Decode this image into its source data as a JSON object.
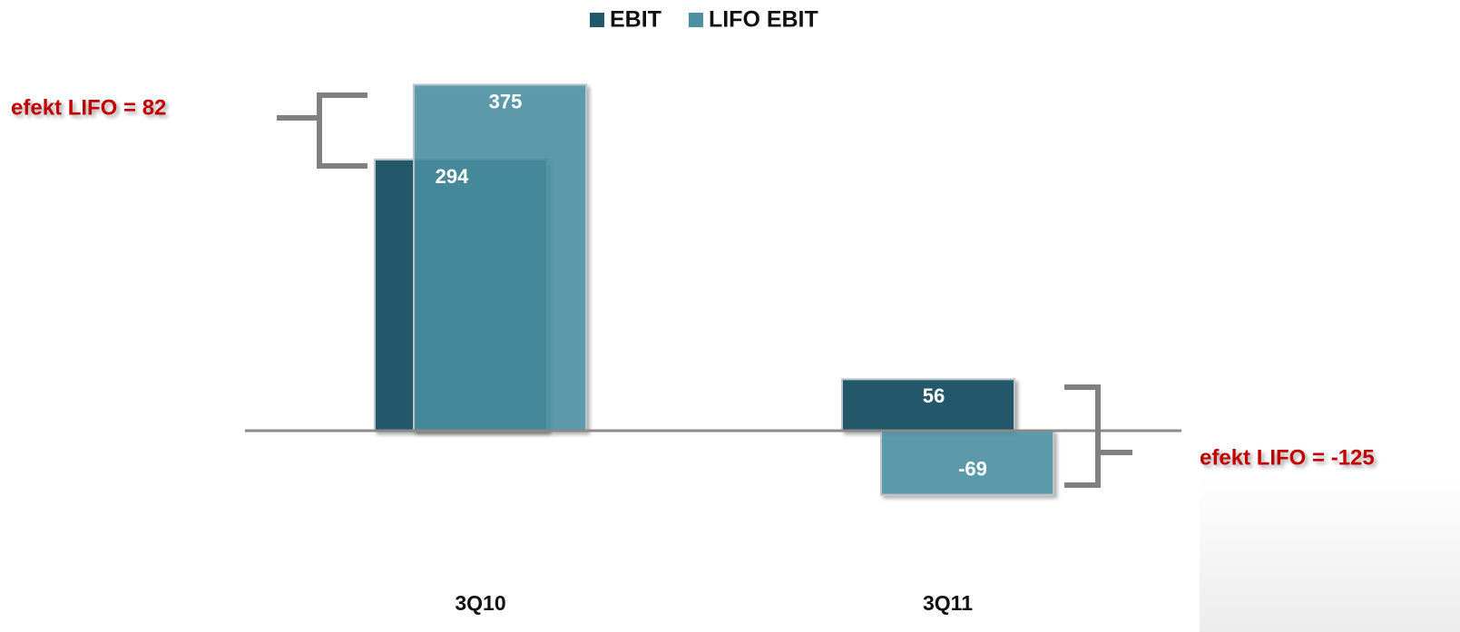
{
  "chart_data": {
    "type": "bar",
    "categories": [
      "3Q10",
      "3Q11"
    ],
    "series": [
      {
        "name": "EBIT",
        "color": "#22596a",
        "values": [
          294,
          56
        ]
      },
      {
        "name": "LIFO EBIT",
        "color": "#4b90a3",
        "values": [
          375,
          -69
        ]
      }
    ],
    "ylim": [
      -200,
      400
    ],
    "annotations": [
      "efekt LIFO = 82",
      "efekt LIFO = -125"
    ],
    "legend": "top"
  }
}
